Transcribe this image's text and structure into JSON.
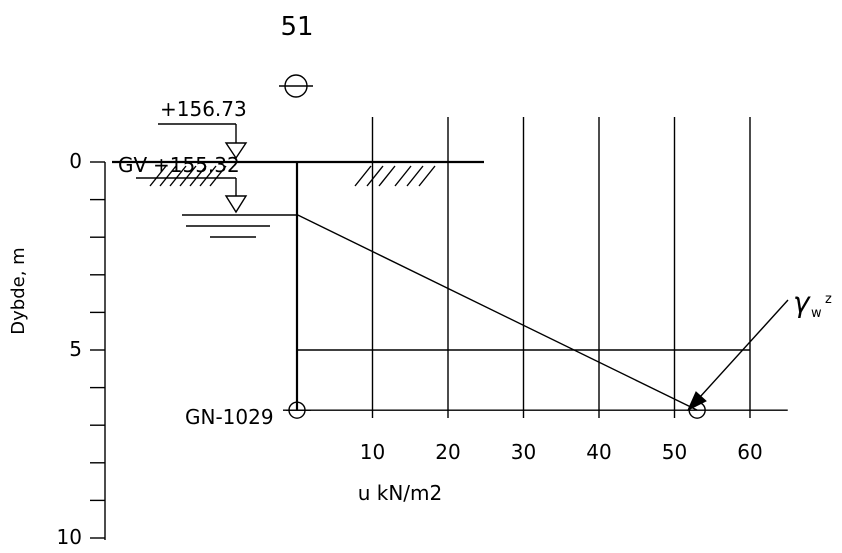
{
  "header": {
    "borehole_number": "51"
  },
  "elevations": {
    "top_label": "+156.73",
    "gv_label": "GV",
    "gv_value": "+155.32"
  },
  "borehole_id": "GN-1029",
  "formula_label": "γ",
  "formula_sub": "w",
  "formula_var": "z",
  "chart_data": {
    "type": "line",
    "xlabel": "u kN/m2",
    "ylabel": "Dybde, m",
    "x_ticks": [
      10,
      20,
      30,
      40,
      50,
      60
    ],
    "y_ticks": [
      0,
      5,
      10
    ],
    "xlim": [
      0,
      65
    ],
    "ylim": [
      0,
      10
    ],
    "series": [
      {
        "x": [
          0,
          53
        ],
        "y": [
          1.4,
          6.6
        ]
      }
    ],
    "reference_depth": 5,
    "borehole_bottom_depth": 6.6
  }
}
